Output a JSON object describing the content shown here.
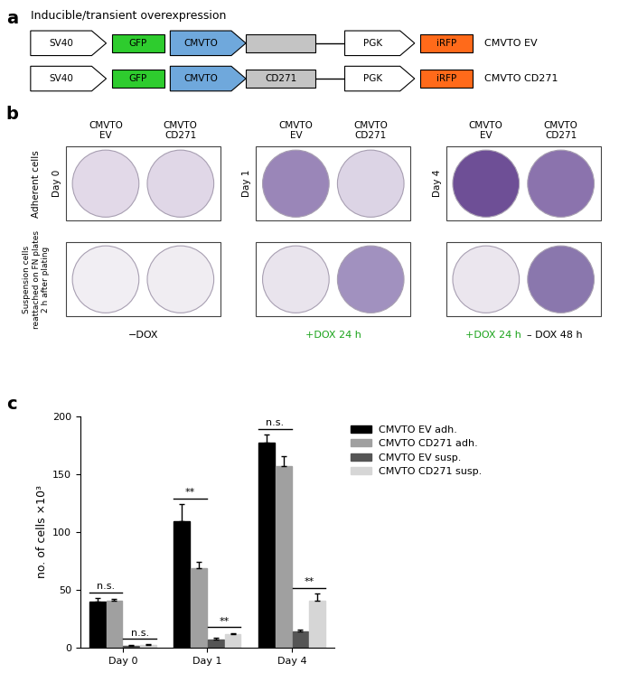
{
  "panel_labels": [
    "a",
    "b",
    "c"
  ],
  "construct_diagram": {
    "title": "Inducible/transient overexpression",
    "constructs": [
      {
        "name": "CMVTO EV",
        "elements": [
          {
            "label": "SV40",
            "shape": "promoter",
            "color": "#ffffff"
          },
          {
            "label": "GFP",
            "shape": "gene",
            "color": "#2ecc2e"
          },
          {
            "label": "CMVTO",
            "shape": "promoter",
            "color": "#6fa8dc"
          },
          {
            "label": null,
            "shape": "gene",
            "color": "#c4c4c4"
          },
          {
            "label": "PGK",
            "shape": "promoter",
            "color": "#ffffff"
          },
          {
            "label": "iRFP",
            "shape": "gene",
            "color": "#ff6a1a"
          }
        ]
      },
      {
        "name": "CMVTO CD271",
        "elements": [
          {
            "label": "SV40",
            "shape": "promoter",
            "color": "#ffffff"
          },
          {
            "label": "GFP",
            "shape": "gene",
            "color": "#2ecc2e"
          },
          {
            "label": "CMVTO",
            "shape": "promoter",
            "color": "#6fa8dc"
          },
          {
            "label": "CD271",
            "shape": "gene",
            "color": "#c4c4c4"
          },
          {
            "label": "PGK",
            "shape": "promoter",
            "color": "#ffffff"
          },
          {
            "label": "iRFP",
            "shape": "gene",
            "color": "#ff6a1a"
          }
        ]
      }
    ]
  },
  "plate_images": {
    "column_labels": [
      "CMVTO EV",
      "CMVTO CD271"
    ],
    "row_labels": [
      "Adherent cells",
      "Suspension cells reattached on FN plates 2 h after plating"
    ],
    "groups": [
      {
        "day": "Day 0",
        "condition": [
          {
            "text": "−DOX",
            "color": "#000000"
          }
        ],
        "plate_colors": [
          [
            "#e2d9e8",
            "#e0d7e7"
          ],
          [
            "#f1eef3",
            "#f0edf2"
          ]
        ]
      },
      {
        "day": "Day 1",
        "condition": [
          {
            "text": "+DOX 24 h",
            "color": "#1aa31a"
          }
        ],
        "plate_colors": [
          [
            "#9a86b8",
            "#dcd4e5"
          ],
          [
            "#e9e4ed",
            "#a191bf"
          ]
        ]
      },
      {
        "day": "Day 4",
        "condition": [
          {
            "text": "+DOX 24 h",
            "color": "#1aa31a"
          },
          {
            "text": "– DOX 48 h",
            "color": "#000000"
          }
        ],
        "plate_colors": [
          [
            "#6e4f96",
            "#8b73ad"
          ],
          [
            "#ebe6ee",
            "#8a77ad"
          ]
        ]
      }
    ]
  },
  "chart_data": {
    "type": "bar",
    "categories": [
      "Day 0",
      "Day 1",
      "Day 4"
    ],
    "ylabel": "no. of cells ×10³",
    "ylim": [
      0,
      200
    ],
    "yticks": [
      0,
      50,
      100,
      150,
      200
    ],
    "legend": "upper left",
    "series": [
      {
        "name": "CMVTO EV adh.",
        "color": "#000000",
        "values": [
          40,
          109,
          177
        ],
        "errors": [
          3,
          15,
          7
        ]
      },
      {
        "name": "CMVTO CD271 adh.",
        "color": "#a0a0a0",
        "values": [
          41,
          69,
          157
        ],
        "errors": [
          1,
          5,
          8
        ]
      },
      {
        "name": "CMVTO EV susp.",
        "color": "#555555",
        "values": [
          2,
          7,
          14
        ],
        "errors": [
          0.5,
          1.5,
          2
        ]
      },
      {
        "name": "CMVTO CD271 susp.",
        "color": "#d6d6d6",
        "values": [
          2.5,
          12,
          41
        ],
        "errors": [
          0.5,
          1,
          6
        ]
      }
    ],
    "significance": [
      {
        "category": "Day 0",
        "between": [
          "CMVTO EV adh.",
          "CMVTO CD271 adh."
        ],
        "label": "n.s."
      },
      {
        "category": "Day 0",
        "between": [
          "CMVTO EV susp.",
          "CMVTO CD271 susp."
        ],
        "label": "n.s."
      },
      {
        "category": "Day 1",
        "between": [
          "CMVTO EV adh.",
          "CMVTO CD271 adh."
        ],
        "label": "**"
      },
      {
        "category": "Day 1",
        "between": [
          "CMVTO EV susp.",
          "CMVTO CD271 susp."
        ],
        "label": "**"
      },
      {
        "category": "Day 4",
        "between": [
          "CMVTO EV adh.",
          "CMVTO CD271 adh."
        ],
        "label": "n.s."
      },
      {
        "category": "Day 4",
        "between": [
          "CMVTO EV susp.",
          "CMVTO CD271 susp."
        ],
        "label": "**"
      }
    ]
  }
}
